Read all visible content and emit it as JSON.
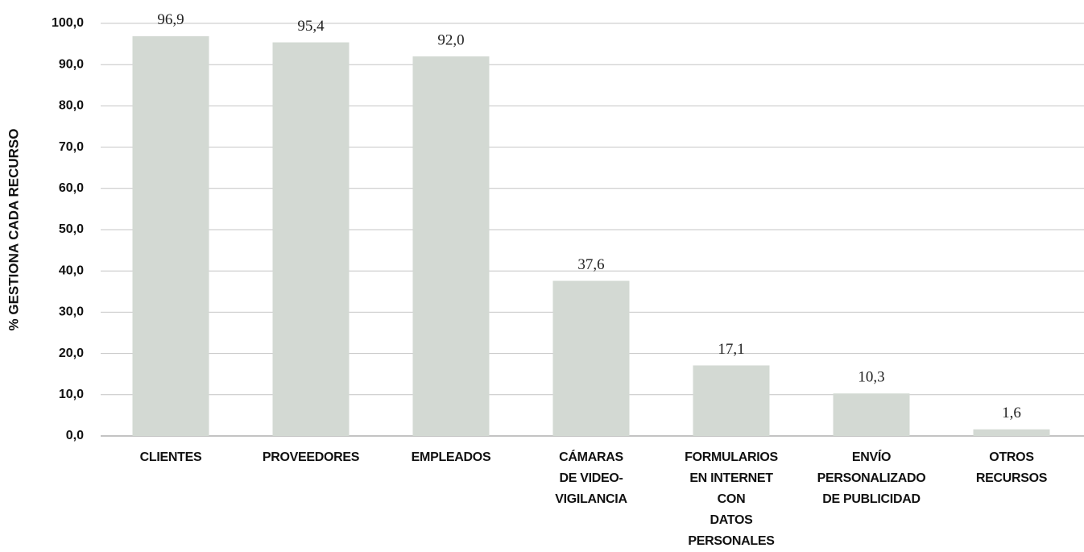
{
  "chart_data": {
    "type": "bar",
    "y_label": "% GESTIONA CADA RECURSO",
    "categories": [
      "CLIENTES",
      "PROVEEDORES",
      "EMPLEADOS",
      "CÁMARAS\nDE VIDEO-\nVIGILANCIA",
      "FORMULARIOS\nEN INTERNET\nCON\nDATOS\nPERSONALES",
      "ENVÍO\nPERSONALIZADO\nDE PUBLICIDAD",
      "OTROS\nRECURSOS"
    ],
    "values": [
      96.9,
      95.4,
      92.0,
      37.6,
      17.1,
      10.3,
      1.6
    ],
    "value_labels": [
      "96,9",
      "95,4",
      "92,0",
      "37,6",
      "17,1",
      "10,3",
      "1,6"
    ],
    "color": "#d3d9d3",
    "ylim": [
      0,
      100
    ],
    "yticks": [
      {
        "value": 0,
        "label": "0,0"
      },
      {
        "value": 10,
        "label": "10,0"
      },
      {
        "value": 20,
        "label": "20,0"
      },
      {
        "value": 30,
        "label": "30,0"
      },
      {
        "value": 40,
        "label": "40,0"
      },
      {
        "value": 50,
        "label": "50,0"
      },
      {
        "value": 60,
        "label": "60,0"
      },
      {
        "value": 70,
        "label": "70,0"
      },
      {
        "value": 80,
        "label": "80,0"
      },
      {
        "value": 90,
        "label": "90,0"
      },
      {
        "value": 100,
        "label": "100,0"
      }
    ],
    "grid": true
  }
}
